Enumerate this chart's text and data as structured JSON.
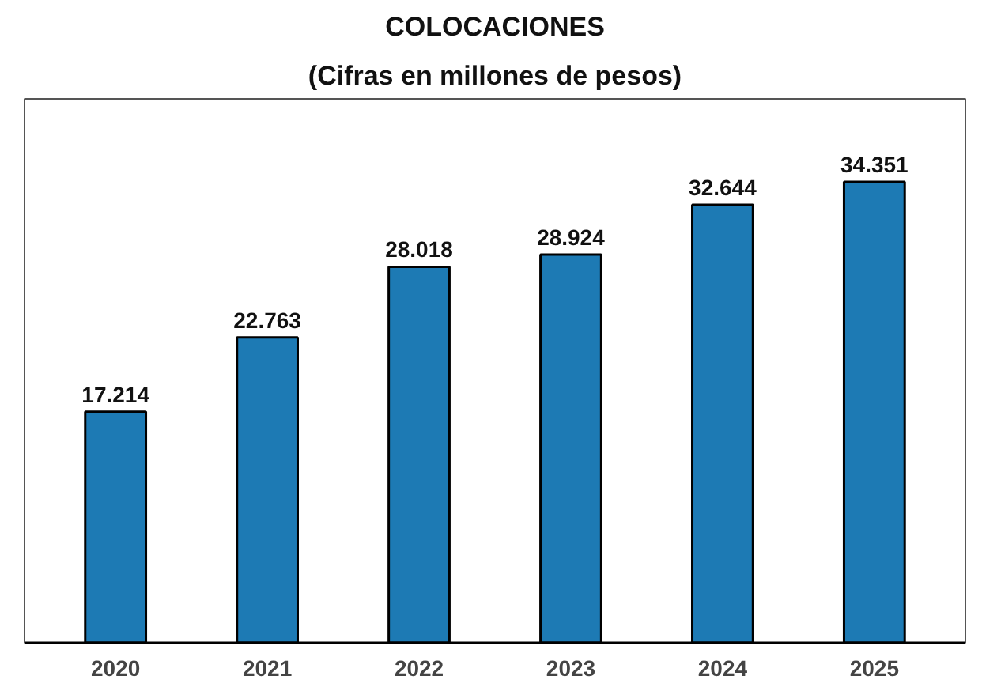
{
  "chart_data": {
    "type": "bar",
    "title": "COLOCACIONES",
    "subtitle": "(Cifras en millones de pesos)",
    "categories": [
      "2020",
      "2021",
      "2022",
      "2023",
      "2024",
      "2025"
    ],
    "values": [
      17214,
      22763,
      28018,
      28924,
      32644,
      34351
    ],
    "value_labels": [
      "17.214",
      "22.763",
      "28.018",
      "28.924",
      "32.644",
      "34.351"
    ],
    "color": "#1d7ab4",
    "grid": false
  }
}
